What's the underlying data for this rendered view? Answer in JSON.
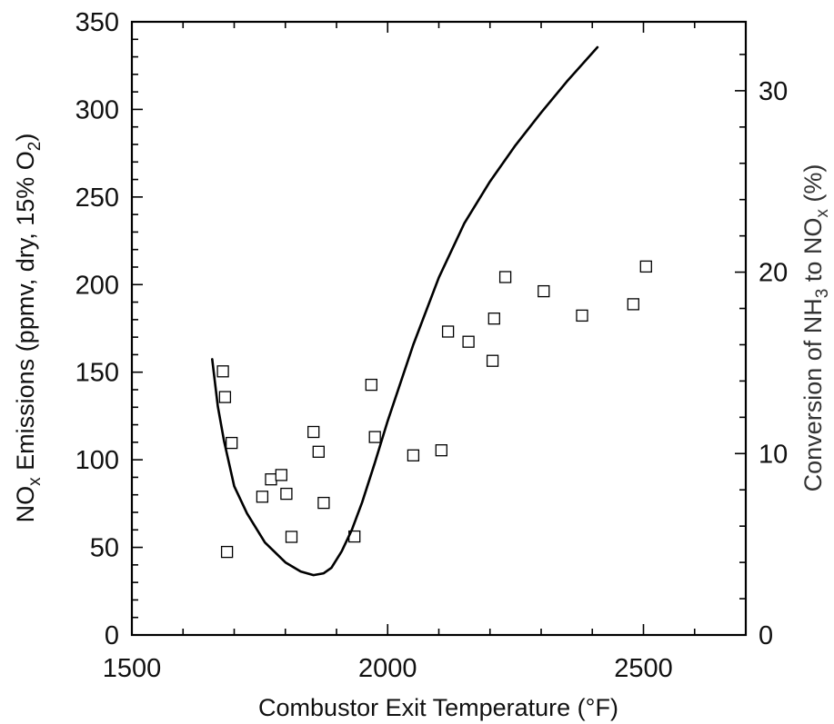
{
  "chart_data": {
    "type": "scatter",
    "xlabel": "Combustor Exit Temperature  (°F)",
    "ylabel": {
      "pre": "NO",
      "sub": "x",
      "mid": " Emissions  (ppmv, dry, 15% O",
      "sub2": "2",
      "post": ")"
    },
    "y2label": {
      "pre": "Conversion of NH",
      "sub": "3",
      "mid": " to NO",
      "sub2": "x",
      "post": "  (%)"
    },
    "xlim": [
      1500,
      2700
    ],
    "ylim": [
      0,
      350
    ],
    "y2lim": [
      0,
      33.8
    ],
    "xticks": [
      1500,
      2000,
      2500
    ],
    "yticks": [
      0,
      50,
      100,
      150,
      200,
      250,
      300,
      350
    ],
    "y2ticks": [
      0,
      10,
      20,
      30
    ],
    "x_minor_step": 100,
    "y_minor_step": 10,
    "y2_minor_step": 2,
    "grid": false,
    "legend": "none",
    "series": [
      {
        "kind": "scatter",
        "axis": "left",
        "marker": "open-square",
        "color": "#000000",
        "points": [
          [
            1678,
            150.5
          ],
          [
            1682,
            135.8
          ],
          [
            1686,
            47.4
          ],
          [
            1695,
            109.6
          ],
          [
            1755,
            78.9
          ],
          [
            1772,
            88.8
          ],
          [
            1792,
            91.3
          ],
          [
            1802,
            80.6
          ],
          [
            1812,
            56.0
          ],
          [
            1855,
            115.9
          ],
          [
            1865,
            104.6
          ],
          [
            1875,
            75.4
          ],
          [
            1935,
            56.2
          ],
          [
            1968,
            142.8
          ],
          [
            1975,
            113.0
          ],
          [
            2050,
            102.5
          ],
          [
            2105,
            105.4
          ],
          [
            2118,
            173.2
          ],
          [
            2158,
            167.4
          ],
          [
            2205,
            156.5
          ],
          [
            2208,
            180.6
          ],
          [
            2230,
            204.3
          ],
          [
            2305,
            196.2
          ],
          [
            2380,
            182.3
          ],
          [
            2480,
            188.8
          ],
          [
            2505,
            210.3
          ]
        ]
      },
      {
        "kind": "line",
        "axis": "right",
        "color": "#000000",
        "points": [
          [
            1657,
            15.2
          ],
          [
            1668,
            12.6
          ],
          [
            1680,
            10.7
          ],
          [
            1700,
            8.2
          ],
          [
            1725,
            6.7
          ],
          [
            1760,
            5.1
          ],
          [
            1800,
            4.0
          ],
          [
            1830,
            3.5
          ],
          [
            1855,
            3.3
          ],
          [
            1875,
            3.4
          ],
          [
            1890,
            3.7
          ],
          [
            1910,
            4.6
          ],
          [
            1930,
            5.8
          ],
          [
            1950,
            7.3
          ],
          [
            1975,
            9.5
          ],
          [
            2000,
            11.8
          ],
          [
            2050,
            16.0
          ],
          [
            2100,
            19.7
          ],
          [
            2150,
            22.7
          ],
          [
            2200,
            25.0
          ],
          [
            2250,
            27.0
          ],
          [
            2300,
            28.8
          ],
          [
            2350,
            30.5
          ],
          [
            2410,
            32.4
          ]
        ]
      }
    ]
  }
}
